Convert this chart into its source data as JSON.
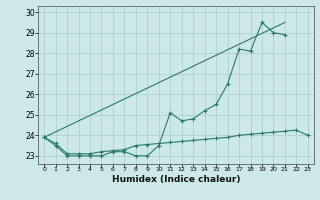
{
  "xlabel": "Humidex (Indice chaleur)",
  "x": [
    0,
    1,
    2,
    3,
    4,
    5,
    6,
    7,
    8,
    9,
    10,
    11,
    12,
    13,
    14,
    15,
    16,
    17,
    18,
    19,
    20,
    21,
    22,
    23
  ],
  "line1_y": [
    23.9,
    23.5,
    23.0,
    23.0,
    23.0,
    23.0,
    23.2,
    23.2,
    23.0,
    23.0,
    23.5,
    25.1,
    24.7,
    24.8,
    25.2,
    25.5,
    26.5,
    28.2,
    28.1,
    29.5,
    29.0,
    28.9,
    null,
    null
  ],
  "line1_has_markers": true,
  "line2_x": [
    0,
    21
  ],
  "line2_y": [
    23.9,
    29.5
  ],
  "line2_has_markers": false,
  "line3_y": [
    23.9,
    23.6,
    23.1,
    23.1,
    23.1,
    23.2,
    23.25,
    23.3,
    23.5,
    23.55,
    23.6,
    23.65,
    23.7,
    23.75,
    23.8,
    23.85,
    23.9,
    24.0,
    24.05,
    24.1,
    24.15,
    24.2,
    24.25,
    24.0
  ],
  "line3_has_markers": true,
  "color": "#2a7a6a",
  "bg_color": "#cce8e8",
  "grid_color": "#b0d0d0",
  "ylim": [
    22.6,
    30.3
  ],
  "yticks": [
    23,
    24,
    25,
    26,
    27,
    28,
    29,
    30
  ],
  "xlim": [
    -0.5,
    23.5
  ]
}
